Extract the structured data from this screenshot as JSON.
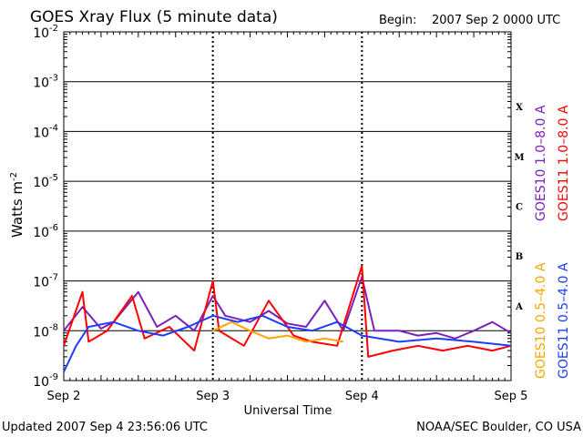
{
  "title": "GOES Xray Flux (5 minute data)",
  "begin_label": "Begin:",
  "begin_value": "2007 Sep 2 0000 UTC",
  "updated": "Updated 2007 Sep  4 23:56:06 UTC",
  "credit": "NOAA/SEC Boulder, CO USA",
  "ylabel_base": "Watts m",
  "ylabel_exp": "-2",
  "xlabel": "Universal Time",
  "flare_classes": [
    "A",
    "B",
    "C",
    "M",
    "X"
  ],
  "legend": {
    "right_long": [
      {
        "text": "GOES10 1.0–8.0 A",
        "color": "#7b1fbf"
      },
      {
        "text": "GOES11 1.0–8.0 A",
        "color": "#ff0000"
      }
    ],
    "right_short": [
      {
        "text": "GOES10 0.5–4.0 A",
        "color": "#ffa500"
      },
      {
        "text": "GOES11 0.5–4.0 A",
        "color": "#1e3cff"
      }
    ]
  },
  "chart_data": {
    "type": "line",
    "title": "GOES Xray Flux (5 minute data)",
    "xlabel": "Universal Time",
    "ylabel": "Watts m-2",
    "yscale": "log",
    "ylim": [
      1e-09,
      0.01
    ],
    "y_ticks": [
      {
        "base": "10",
        "exp": "-9",
        "value": 1e-09
      },
      {
        "base": "10",
        "exp": "-8",
        "value": 1e-08
      },
      {
        "base": "10",
        "exp": "-7",
        "value": 1e-07
      },
      {
        "base": "10",
        "exp": "-6",
        "value": 1e-06
      },
      {
        "base": "10",
        "exp": "-5",
        "value": 1e-05
      },
      {
        "base": "10",
        "exp": "-4",
        "value": 0.0001
      },
      {
        "base": "10",
        "exp": "-3",
        "value": 0.001
      },
      {
        "base": "10",
        "exp": "-2",
        "value": 0.01
      }
    ],
    "xlim": [
      "2007-09-02",
      "2007-09-05"
    ],
    "x_ticks": [
      {
        "label": "Sep 2",
        "value": "2007-09-02"
      },
      {
        "label": "Sep 3",
        "value": "2007-09-03"
      },
      {
        "label": "Sep 4",
        "value": "2007-09-04"
      },
      {
        "label": "Sep 5",
        "value": "2007-09-05"
      }
    ],
    "series": [
      {
        "name": "GOES10 1.0–8.0 A",
        "color": "#7b1fbf",
        "x": [
          "2007-09-02 00:00",
          "2007-09-02 03:00",
          "2007-09-02 06:00",
          "2007-09-02 08:00",
          "2007-09-02 12:00",
          "2007-09-02 15:00",
          "2007-09-02 18:00",
          "2007-09-02 21:00",
          "2007-09-03 00:00",
          "2007-09-03 02:00",
          "2007-09-03 06:00",
          "2007-09-03 09:00",
          "2007-09-03 12:00",
          "2007-09-03 15:00",
          "2007-09-03 18:00",
          "2007-09-03 21:00",
          "2007-09-04 00:00",
          "2007-09-04 02:00",
          "2007-09-04 06:00",
          "2007-09-04 09:00",
          "2007-09-04 12:00",
          "2007-09-04 15:00",
          "2007-09-04 18:00",
          "2007-09-04 21:00",
          "2007-09-05 00:00"
        ],
        "y": [
          1e-08,
          3e-08,
          1.1e-08,
          1.5e-08,
          6e-08,
          1.2e-08,
          2e-08,
          1e-08,
          5e-08,
          2e-08,
          1.5e-08,
          2.5e-08,
          1.4e-08,
          1.2e-08,
          4e-08,
          1e-08,
          1.2e-07,
          1e-08,
          1e-08,
          8e-09,
          9e-09,
          7e-09,
          1e-08,
          1.5e-08,
          9e-09
        ]
      },
      {
        "name": "GOES11 1.0–8.0 A",
        "color": "#ff0000",
        "x": [
          "2007-09-02 00:00",
          "2007-09-02 03:00",
          "2007-09-02 04:00",
          "2007-09-02 07:00",
          "2007-09-02 11:00",
          "2007-09-02 13:00",
          "2007-09-02 17:00",
          "2007-09-02 21:00",
          "2007-09-03 00:00",
          "2007-09-03 01:00",
          "2007-09-03 05:00",
          "2007-09-03 09:00",
          "2007-09-03 13:00",
          "2007-09-03 16:00",
          "2007-09-03 20:00",
          "2007-09-04 00:00",
          "2007-09-04 01:00",
          "2007-09-04 05:00",
          "2007-09-04 09:00",
          "2007-09-04 13:00",
          "2007-09-04 17:00",
          "2007-09-04 21:00",
          "2007-09-05 00:00"
        ],
        "y": [
          5e-09,
          6e-08,
          6e-09,
          1e-08,
          5e-08,
          7e-09,
          1.2e-08,
          4e-09,
          1e-07,
          1e-08,
          5e-09,
          4e-08,
          8e-09,
          6e-09,
          5e-09,
          2e-07,
          3e-09,
          4e-09,
          5e-09,
          4e-09,
          5e-09,
          4e-09,
          5e-09
        ]
      },
      {
        "name": "GOES10 0.5–4.0 A",
        "color": "#ffa500",
        "x": [
          "2007-09-03 00:00",
          "2007-09-03 03:00",
          "2007-09-03 06:00",
          "2007-09-03 09:00",
          "2007-09-03 12:00",
          "2007-09-03 15:00",
          "2007-09-03 18:00",
          "2007-09-03 21:00"
        ],
        "y": [
          1e-08,
          1.5e-08,
          1e-08,
          7e-09,
          8e-09,
          6e-09,
          7e-09,
          6e-09
        ]
      },
      {
        "name": "GOES11 0.5–4.0 A",
        "color": "#1e3cff",
        "x": [
          "2007-09-02 00:00",
          "2007-09-02 02:00",
          "2007-09-02 04:00",
          "2007-09-02 08:00",
          "2007-09-02 12:00",
          "2007-09-02 16:00",
          "2007-09-02 20:00",
          "2007-09-03 00:00",
          "2007-09-03 04:00",
          "2007-09-03 08:00",
          "2007-09-03 12:00",
          "2007-09-03 16:00",
          "2007-09-03 20:00",
          "2007-09-04 00:00",
          "2007-09-04 06:00",
          "2007-09-04 12:00",
          "2007-09-04 18:00",
          "2007-09-05 00:00"
        ],
        "y": [
          1.5e-09,
          5e-09,
          1.2e-08,
          1.5e-08,
          1e-08,
          8e-09,
          1.2e-08,
          2e-08,
          1.5e-08,
          2e-08,
          1.2e-08,
          1e-08,
          1.5e-08,
          8e-09,
          6e-09,
          7e-09,
          6e-09,
          5e-09
        ]
      }
    ]
  }
}
